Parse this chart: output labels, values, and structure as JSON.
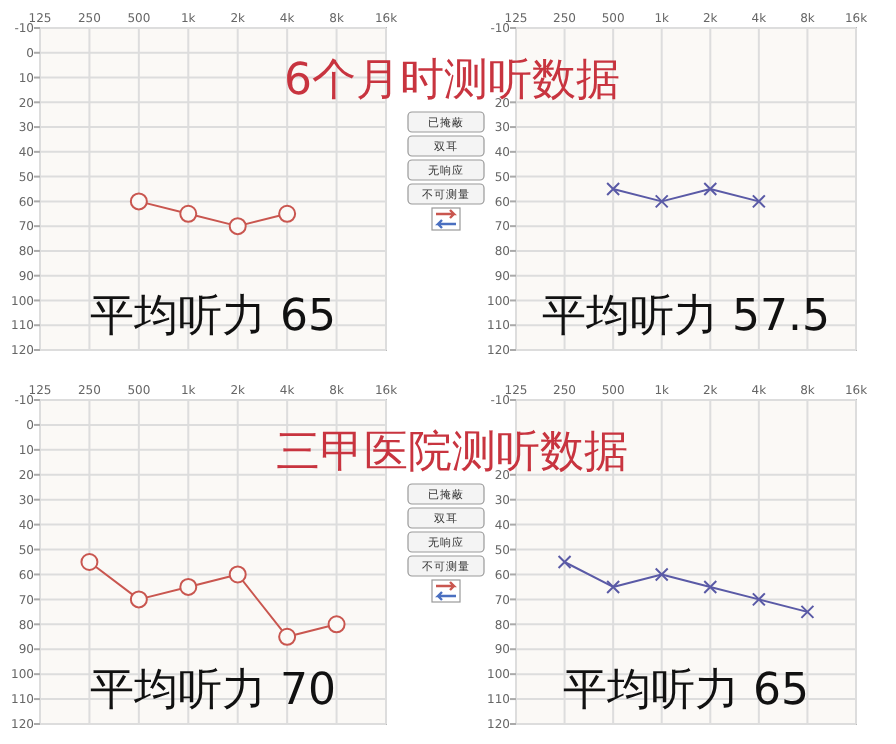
{
  "chart_data": [
    {
      "type": "line",
      "title": "6个月时测听数据",
      "categories": [
        "125",
        "250",
        "500",
        "1k",
        "2k",
        "4k",
        "8k",
        "16k"
      ],
      "series": [
        {
          "color": "#c9564f",
          "values": [
            null,
            null,
            60,
            65,
            70,
            65,
            null,
            null
          ]
        }
      ],
      "ylim": [
        120,
        -10
      ],
      "yticks": [
        -10,
        0,
        10,
        20,
        30,
        40,
        50,
        60,
        70,
        80,
        90,
        100,
        110,
        120
      ],
      "grid": true,
      "marker": "circle",
      "annotations": [
        "平均听力 65",
        "已掩蔽",
        "双耳",
        "无响应",
        "不可测量"
      ]
    },
    {
      "type": "line",
      "categories": [
        "125",
        "250",
        "500",
        "1k",
        "2k",
        "4k",
        "8k",
        "16k"
      ],
      "series": [
        {
          "color": "#5a5aa6",
          "values": [
            null,
            null,
            55,
            60,
            55,
            60,
            null,
            null
          ]
        }
      ],
      "ylim": [
        120,
        -10
      ],
      "yticks": [
        -10,
        20,
        30,
        40,
        50,
        60,
        70,
        80,
        90,
        100,
        110,
        120
      ],
      "grid": true,
      "marker": "cross",
      "annotations": [
        "平均听力 57.5"
      ]
    },
    {
      "type": "line",
      "title": "三甲医院测听数据",
      "categories": [
        "125",
        "250",
        "500",
        "1k",
        "2k",
        "4k",
        "8k",
        "16k"
      ],
      "series": [
        {
          "color": "#c9564f",
          "values": [
            null,
            55,
            70,
            65,
            60,
            85,
            80,
            null
          ]
        }
      ],
      "ylim": [
        120,
        -10
      ],
      "yticks": [
        -10,
        0,
        10,
        20,
        30,
        40,
        50,
        60,
        70,
        80,
        90,
        100,
        110,
        120
      ],
      "grid": true,
      "marker": "circle",
      "annotations": [
        "平均听力 70",
        "已掩蔽",
        "双耳",
        "无响应",
        "不可测量"
      ]
    },
    {
      "type": "line",
      "categories": [
        "125",
        "250",
        "500",
        "1k",
        "2k",
        "4k",
        "8k",
        "16k"
      ],
      "series": [
        {
          "color": "#5a5aa6",
          "values": [
            null,
            55,
            65,
            60,
            65,
            70,
            75,
            null
          ]
        }
      ],
      "ylim": [
        120,
        -10
      ],
      "yticks": [
        -10,
        20,
        30,
        40,
        50,
        60,
        70,
        80,
        90,
        100,
        110,
        120
      ],
      "grid": true,
      "marker": "cross",
      "annotations": [
        "平均听力 65"
      ]
    }
  ]
}
